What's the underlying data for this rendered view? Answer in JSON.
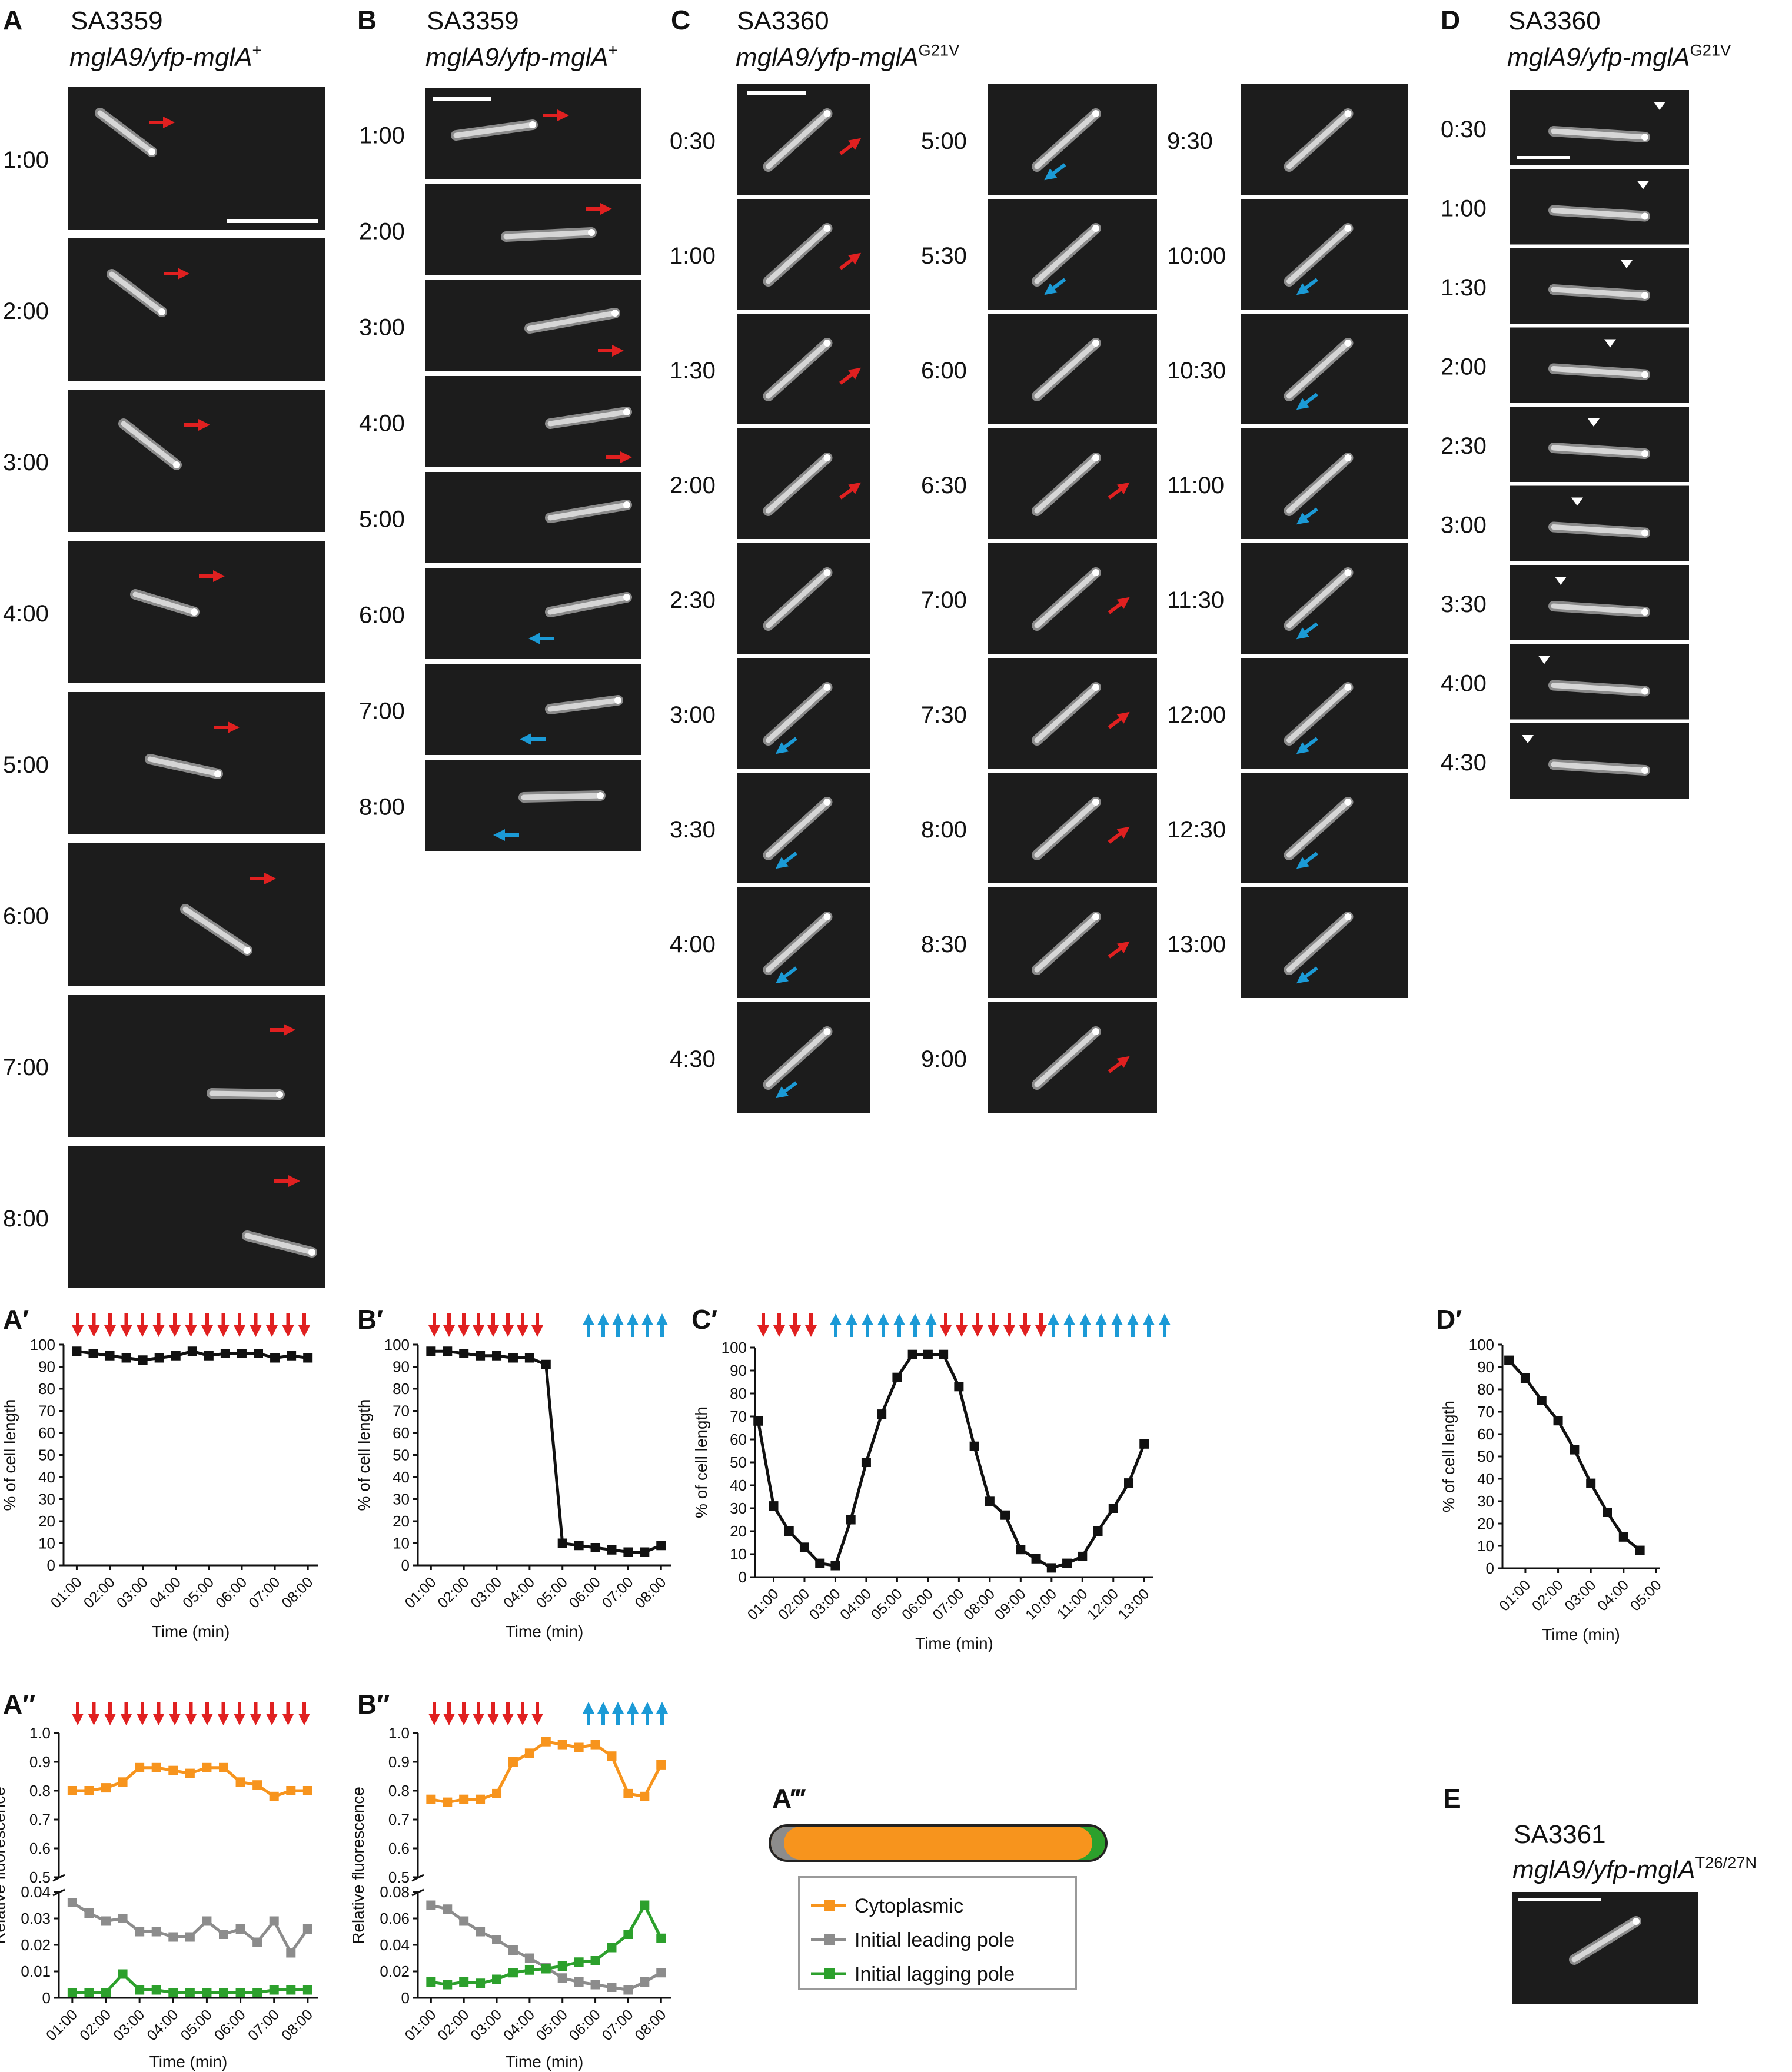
{
  "panels": {
    "A": {
      "letter": "A",
      "strain": "SA3359",
      "genotype": "mglA9/yfp-mglA",
      "sup": "+",
      "times": [
        "1:00",
        "2:00",
        "3:00",
        "4:00",
        "5:00",
        "6:00",
        "7:00",
        "8:00"
      ],
      "arrows": [
        "red",
        "red",
        "red",
        "red",
        "red",
        "red",
        "red",
        "red"
      ]
    },
    "B": {
      "letter": "B",
      "strain": "SA3359",
      "genotype": "mglA9/yfp-mglA",
      "sup": "+",
      "times": [
        "1:00",
        "2:00",
        "3:00",
        "4:00",
        "5:00",
        "6:00",
        "7:00",
        "8:00"
      ],
      "arrows": [
        "red",
        "red",
        "red",
        "red",
        "",
        "blue",
        "blue",
        "blue"
      ]
    },
    "C": {
      "letter": "C",
      "strain": "SA3360",
      "genotype": "mglA9/yfp-mglA",
      "sup": "G21V",
      "columns": [
        {
          "times": [
            "0:30",
            "1:00",
            "1:30",
            "2:00",
            "2:30",
            "3:00",
            "3:30",
            "4:00",
            "4:30"
          ],
          "arrows": [
            "red",
            "red",
            "red",
            "red",
            "",
            "blue",
            "blue",
            "blue",
            "blue"
          ]
        },
        {
          "times": [
            "5:00",
            "5:30",
            "6:00",
            "6:30",
            "7:00",
            "7:30",
            "8:00",
            "8:30",
            "9:00"
          ],
          "arrows": [
            "blue",
            "blue",
            "",
            "red",
            "red",
            "red",
            "red",
            "red",
            "red"
          ]
        },
        {
          "times": [
            "9:30",
            "10:00",
            "10:30",
            "11:00",
            "11:30",
            "12:00",
            "12:30",
            "13:00"
          ],
          "arrows": [
            "",
            "blue",
            "blue",
            "blue",
            "blue",
            "blue",
            "blue",
            "blue"
          ]
        }
      ]
    },
    "D": {
      "letter": "D",
      "strain": "SA3360",
      "genotype": "mglA9/yfp-mglA",
      "sup": "G21V",
      "times": [
        "0:30",
        "1:00",
        "1:30",
        "2:00",
        "2:30",
        "3:00",
        "3:30",
        "4:00",
        "4:30"
      ]
    },
    "E": {
      "letter": "E",
      "strain": "SA3361",
      "genotype": "mglA9/yfp-mglA",
      "sup": "T26/27N"
    }
  },
  "chart_data": [
    {
      "panel": "A′",
      "type": "line",
      "ylabel": "% of cell length",
      "xlabel": "Time (min)",
      "ylim": [
        0,
        100
      ],
      "yticks": [
        0,
        10,
        20,
        30,
        40,
        50,
        60,
        70,
        80,
        90,
        100
      ],
      "xticks": [
        "01:00",
        "02:00",
        "03:00",
        "04:00",
        "05:00",
        "06:00",
        "07:00",
        "08:00"
      ],
      "x": [
        1,
        1.5,
        2,
        2.5,
        3,
        3.5,
        4,
        4.5,
        5,
        5.5,
        6,
        6.5,
        7,
        7.5,
        8
      ],
      "series": [
        {
          "color": "#111111",
          "values": [
            97,
            96,
            95,
            94,
            93,
            94,
            95,
            97,
            95,
            96,
            96,
            96,
            94,
            95,
            94
          ]
        }
      ],
      "arrows": {
        "red": 15,
        "blue": 0
      }
    },
    {
      "panel": "B′",
      "type": "line",
      "ylabel": "% of cell length",
      "xlabel": "Time (min)",
      "ylim": [
        0,
        100
      ],
      "yticks": [
        0,
        10,
        20,
        30,
        40,
        50,
        60,
        70,
        80,
        90,
        100
      ],
      "xticks": [
        "01:00",
        "02:00",
        "03:00",
        "04:00",
        "05:00",
        "06:00",
        "07:00",
        "08:00"
      ],
      "x": [
        1,
        1.5,
        2,
        2.5,
        3,
        3.5,
        4,
        4.5,
        5,
        5.5,
        6,
        6.5,
        7,
        7.5,
        8
      ],
      "series": [
        {
          "color": "#111111",
          "values": [
            97,
            97,
            96,
            95,
            95,
            94,
            94,
            91,
            10,
            9,
            8,
            7,
            6,
            6,
            9
          ]
        }
      ],
      "arrows": {
        "red": 8,
        "blue": 6
      }
    },
    {
      "panel": "C′",
      "type": "line",
      "ylabel": "% of cell length",
      "xlabel": "Time (min)",
      "ylim": [
        0,
        100
      ],
      "yticks": [
        0,
        10,
        20,
        30,
        40,
        50,
        60,
        70,
        80,
        90,
        100
      ],
      "xticks": [
        "01:00",
        "02:00",
        "03:00",
        "04:00",
        "05:00",
        "06:00",
        "07:00",
        "08:00",
        "09:00",
        "10:00",
        "11:00",
        "12:00",
        "13:00"
      ],
      "x": [
        0.5,
        1,
        1.5,
        2,
        2.5,
        3,
        3.5,
        4,
        4.5,
        5,
        5.5,
        6,
        6.5,
        7,
        7.5,
        8,
        8.5,
        9,
        9.5,
        10,
        10.5,
        11,
        11.5,
        12,
        12.5,
        13
      ],
      "series": [
        {
          "color": "#111111",
          "values": [
            68,
            31,
            20,
            13,
            6,
            5,
            25,
            50,
            71,
            87,
            97,
            97,
            97,
            83,
            57,
            33,
            27,
            12,
            8,
            4,
            6,
            9,
            20,
            30,
            41,
            58
          ]
        }
      ],
      "arrows": {
        "red": [
          4,
          6
        ],
        "blue": [
          6,
          7
        ]
      }
    },
    {
      "panel": "D′",
      "type": "line",
      "ylabel": "% of cell length",
      "xlabel": "Time (min)",
      "ylim": [
        0,
        100
      ],
      "yticks": [
        0,
        10,
        20,
        30,
        40,
        50,
        60,
        70,
        80,
        90,
        100
      ],
      "xticks": [
        "01:00",
        "02:00",
        "03:00",
        "04:00",
        "05:00"
      ],
      "x": [
        0.5,
        1,
        1.5,
        2,
        2.5,
        3,
        3.5,
        4,
        4.5
      ],
      "series": [
        {
          "color": "#111111",
          "values": [
            93,
            85,
            75,
            66,
            53,
            38,
            25,
            14,
            8
          ]
        }
      ]
    },
    {
      "panel": "A″",
      "type": "line",
      "ylabel": "Relative fluorescence",
      "xlabel": "Time (min)",
      "ylim_upper": [
        0.5,
        1.0
      ],
      "ylim_lower": [
        0,
        0.04
      ],
      "yticks_upper": [
        "0.5",
        "0.6",
        "0.7",
        "0.8",
        "0.9",
        "1.0"
      ],
      "yticks_lower": [
        "0",
        "0.01",
        "0.02",
        "0.03",
        "0.04"
      ],
      "xticks": [
        "01:00",
        "02:00",
        "03:00",
        "04:00",
        "05:00",
        "06:00",
        "07:00",
        "08:00"
      ],
      "x": [
        1,
        1.5,
        2,
        2.5,
        3,
        3.5,
        4,
        4.5,
        5,
        5.5,
        6,
        6.5,
        7,
        7.5,
        8
      ],
      "series": [
        {
          "color": "#f7941d",
          "values": [
            0.8,
            0.8,
            0.81,
            0.83,
            0.88,
            0.88,
            0.87,
            0.86,
            0.88,
            0.88,
            0.83,
            0.82,
            0.78,
            0.8,
            0.8
          ]
        },
        {
          "color": "#8c8c8c",
          "values": [
            0.036,
            0.032,
            0.029,
            0.03,
            0.025,
            0.025,
            0.023,
            0.023,
            0.029,
            0.024,
            0.026,
            0.021,
            0.029,
            0.017,
            0.026
          ]
        },
        {
          "color": "#2ca02c",
          "values": [
            0.002,
            0.002,
            0.002,
            0.009,
            0.003,
            0.003,
            0.002,
            0.002,
            0.002,
            0.002,
            0.002,
            0.002,
            0.003,
            0.003,
            0.003
          ]
        }
      ],
      "arrows": {
        "red": 15,
        "blue": 0
      }
    },
    {
      "panel": "B″",
      "type": "line",
      "ylabel": "Relative fluorescence",
      "xlabel": "Time (min)",
      "ylim_upper": [
        0.5,
        1.0
      ],
      "ylim_lower": [
        0,
        0.08
      ],
      "yticks_upper": [
        "0.5",
        "0.6",
        "0.7",
        "0.8",
        "0.9",
        "1.0"
      ],
      "yticks_lower": [
        "0",
        "0.02",
        "0.04",
        "0.06",
        "0.08"
      ],
      "xticks": [
        "01:00",
        "02:00",
        "03:00",
        "04:00",
        "05:00",
        "06:00",
        "07:00",
        "08:00"
      ],
      "x": [
        1,
        1.5,
        2,
        2.5,
        3,
        3.5,
        4,
        4.5,
        5,
        5.5,
        6,
        6.5,
        7,
        7.5,
        8
      ],
      "series": [
        {
          "color": "#f7941d",
          "values": [
            0.77,
            0.76,
            0.77,
            0.77,
            0.79,
            0.9,
            0.93,
            0.97,
            0.96,
            0.95,
            0.96,
            0.92,
            0.79,
            0.78,
            0.89
          ]
        },
        {
          "color": "#8c8c8c",
          "values": [
            0.07,
            0.067,
            0.058,
            0.05,
            0.044,
            0.036,
            0.03,
            0.023,
            0.015,
            0.012,
            0.01,
            0.008,
            0.006,
            0.012,
            0.019
          ]
        },
        {
          "color": "#2ca02c",
          "values": [
            0.012,
            0.01,
            0.012,
            0.011,
            0.014,
            0.019,
            0.021,
            0.022,
            0.024,
            0.027,
            0.028,
            0.038,
            0.048,
            0.07,
            0.045
          ]
        }
      ],
      "arrows": {
        "red": 8,
        "blue": 6
      }
    }
  ],
  "legend": {
    "letter": "A‴",
    "items": [
      {
        "label": "Cytoplasmic",
        "color": "#f7941d"
      },
      {
        "label": "Initial leading pole",
        "color": "#8c8c8c"
      },
      {
        "label": "Initial lagging pole",
        "color": "#2ca02c"
      }
    ]
  },
  "colors": {
    "red_arrow": "#e02020",
    "blue_arrow": "#1b9ad6",
    "orange": "#f7941d",
    "gray": "#8c8c8c",
    "green": "#2ca02c"
  }
}
